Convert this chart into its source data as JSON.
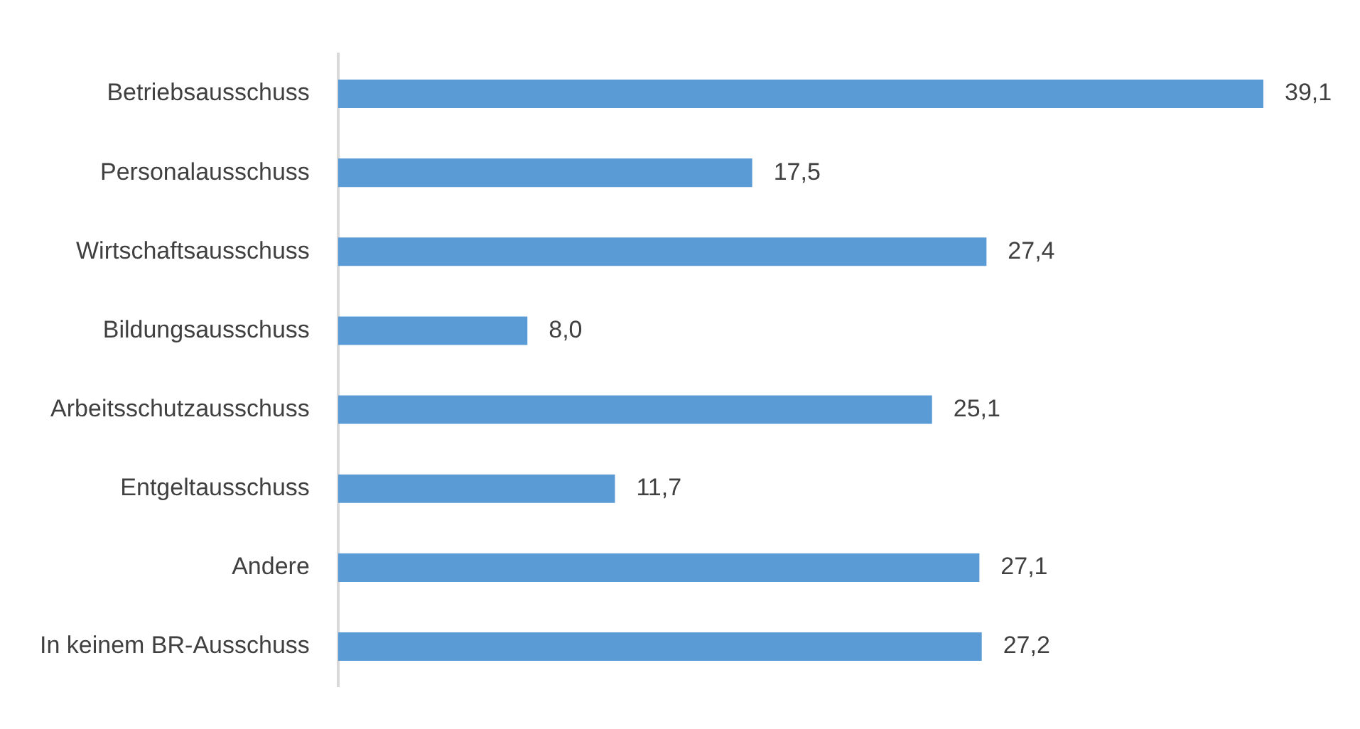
{
  "chart_data": {
    "type": "bar",
    "orientation": "horizontal",
    "categories": [
      "Betriebsausschuss",
      "Personalausschuss",
      "Wirtschaftsausschuss",
      "Bildungsausschuss",
      "Arbeitsschutzausschuss",
      "Entgeltausschuss",
      "Andere",
      "In keinem BR-Ausschuss"
    ],
    "values": [
      39.1,
      17.5,
      27.4,
      8.0,
      25.1,
      11.7,
      27.1,
      27.2
    ],
    "value_labels": [
      "39,1",
      "17,5",
      "27,4",
      "8,0",
      "25,1",
      "11,7",
      "27,1",
      "27,2"
    ],
    "color": "#5b9bd5",
    "xlim": [
      0,
      39.1
    ],
    "tick_labels": "y",
    "legend": false
  }
}
